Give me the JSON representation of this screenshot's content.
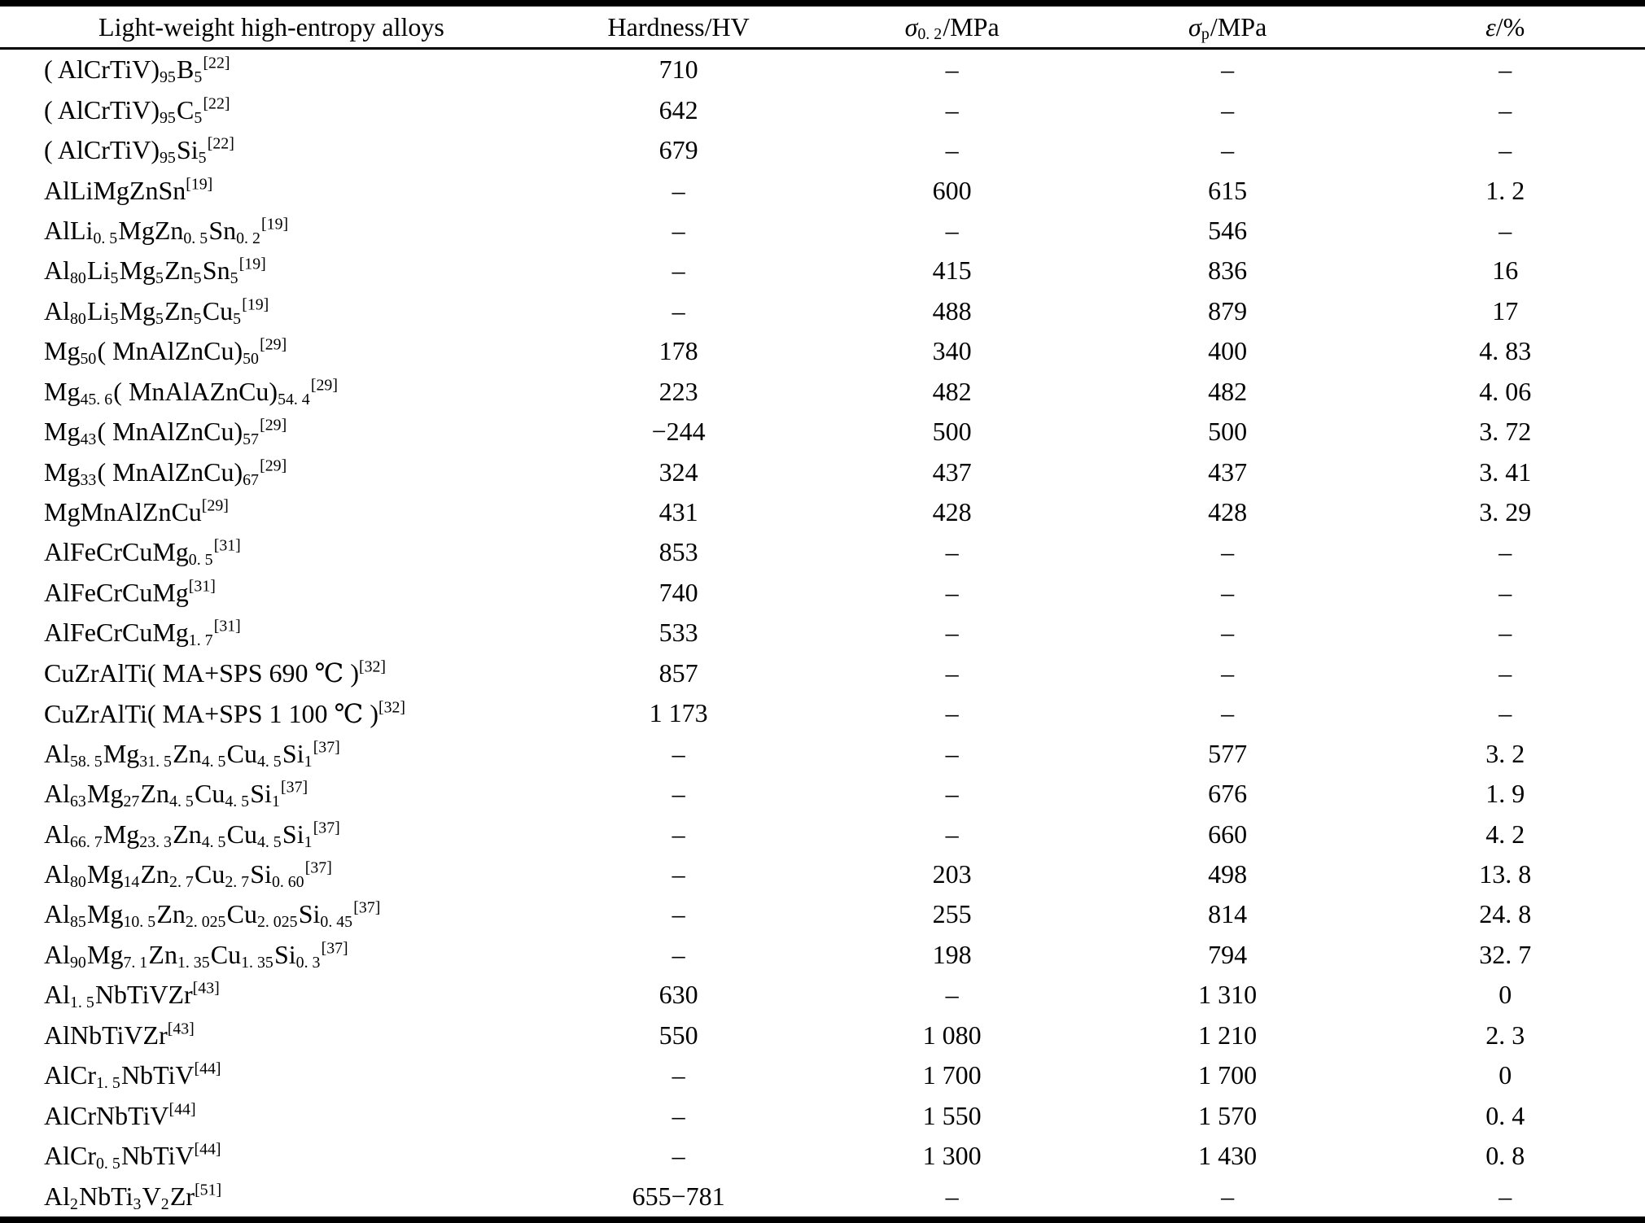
{
  "table": {
    "columns": [
      {
        "label": [
          {
            "t": "Light-weight high-entropy alloys"
          }
        ]
      },
      {
        "label": [
          {
            "t": "Hardness/HV"
          }
        ]
      },
      {
        "label": [
          {
            "i": "σ"
          },
          {
            "sub": "0. 2"
          },
          {
            "t": "/MPa"
          }
        ]
      },
      {
        "label": [
          {
            "i": "σ"
          },
          {
            "sub": "p"
          },
          {
            "t": "/MPa"
          }
        ]
      },
      {
        "label": [
          {
            "i": "ε"
          },
          {
            "t": "/%"
          }
        ]
      }
    ],
    "rows": [
      {
        "name": [
          {
            "t": "( AlCrTiV)"
          },
          {
            "sub": "95"
          },
          {
            "t": "B"
          },
          {
            "sub": "5"
          },
          {
            "sup": "[22]"
          }
        ],
        "values": [
          "710",
          "–",
          "–",
          "–"
        ]
      },
      {
        "name": [
          {
            "t": "( AlCrTiV)"
          },
          {
            "sub": "95"
          },
          {
            "t": "C"
          },
          {
            "sub": "5"
          },
          {
            "sup": "[22]"
          }
        ],
        "values": [
          "642",
          "–",
          "–",
          "–"
        ]
      },
      {
        "name": [
          {
            "t": "( AlCrTiV)"
          },
          {
            "sub": "95"
          },
          {
            "t": "Si"
          },
          {
            "sub": "5"
          },
          {
            "sup": "[22]"
          }
        ],
        "values": [
          "679",
          "–",
          "–",
          "–"
        ]
      },
      {
        "name": [
          {
            "t": "AlLiMgZnSn"
          },
          {
            "sup": "[19]"
          }
        ],
        "values": [
          "–",
          "600",
          "615",
          "1. 2"
        ]
      },
      {
        "name": [
          {
            "t": "AlLi"
          },
          {
            "sub": "0. 5"
          },
          {
            "t": "MgZn"
          },
          {
            "sub": "0. 5"
          },
          {
            "t": "Sn"
          },
          {
            "sub": "0. 2"
          },
          {
            "sup": "[19]"
          }
        ],
        "values": [
          "–",
          "–",
          "546",
          "–"
        ]
      },
      {
        "name": [
          {
            "t": "Al"
          },
          {
            "sub": "80"
          },
          {
            "t": "Li"
          },
          {
            "sub": "5"
          },
          {
            "t": "Mg"
          },
          {
            "sub": "5"
          },
          {
            "t": "Zn"
          },
          {
            "sub": "5"
          },
          {
            "t": "Sn"
          },
          {
            "sub": "5"
          },
          {
            "sup": "[19]"
          }
        ],
        "values": [
          "–",
          "415",
          "836",
          "16"
        ]
      },
      {
        "name": [
          {
            "t": "Al"
          },
          {
            "sub": "80"
          },
          {
            "t": "Li"
          },
          {
            "sub": "5"
          },
          {
            "t": "Mg"
          },
          {
            "sub": "5"
          },
          {
            "t": "Zn"
          },
          {
            "sub": "5"
          },
          {
            "t": "Cu"
          },
          {
            "sub": "5"
          },
          {
            "sup": "[19]"
          }
        ],
        "values": [
          "–",
          "488",
          "879",
          "17"
        ]
      },
      {
        "name": [
          {
            "t": "Mg"
          },
          {
            "sub": "50"
          },
          {
            "t": "( MnAlZnCu)"
          },
          {
            "sub": "50"
          },
          {
            "sup": "[29]"
          }
        ],
        "values": [
          "178",
          "340",
          "400",
          "4. 83"
        ]
      },
      {
        "name": [
          {
            "t": "Mg"
          },
          {
            "sub": "45. 6"
          },
          {
            "t": "( MnAlAZnCu)"
          },
          {
            "sub": "54. 4"
          },
          {
            "sup": "[29]"
          }
        ],
        "values": [
          "223",
          "482",
          "482",
          "4. 06"
        ]
      },
      {
        "name": [
          {
            "t": "Mg"
          },
          {
            "sub": "43"
          },
          {
            "t": "( MnAlZnCu)"
          },
          {
            "sub": "57"
          },
          {
            "sup": "[29]"
          }
        ],
        "values": [
          "−244",
          "500",
          "500",
          "3. 72"
        ]
      },
      {
        "name": [
          {
            "t": "Mg"
          },
          {
            "sub": "33"
          },
          {
            "t": "( MnAlZnCu)"
          },
          {
            "sub": "67"
          },
          {
            "sup": "[29]"
          }
        ],
        "values": [
          "324",
          "437",
          "437",
          "3. 41"
        ]
      },
      {
        "name": [
          {
            "t": "MgMnAlZnCu"
          },
          {
            "sup": "[29]"
          }
        ],
        "values": [
          "431",
          "428",
          "428",
          "3. 29"
        ]
      },
      {
        "name": [
          {
            "t": "AlFeCrCuMg"
          },
          {
            "sub": "0. 5"
          },
          {
            "sup": "[31]"
          }
        ],
        "values": [
          "853",
          "–",
          "–",
          "–"
        ]
      },
      {
        "name": [
          {
            "t": "AlFeCrCuMg"
          },
          {
            "sup": "[31]"
          }
        ],
        "values": [
          "740",
          "–",
          "–",
          "–"
        ]
      },
      {
        "name": [
          {
            "t": "AlFeCrCuMg"
          },
          {
            "sub": "1. 7"
          },
          {
            "sup": "[31]"
          }
        ],
        "values": [
          "533",
          "–",
          "–",
          "–"
        ]
      },
      {
        "name": [
          {
            "t": "CuZrAlTi( MA+SPS 690 ℃ )"
          },
          {
            "sup": "[32]"
          }
        ],
        "values": [
          "857",
          "–",
          "–",
          "–"
        ]
      },
      {
        "name": [
          {
            "t": "CuZrAlTi( MA+SPS 1 100 ℃ )"
          },
          {
            "sup": "[32]"
          }
        ],
        "values": [
          "1 173",
          "–",
          "–",
          "–"
        ]
      },
      {
        "name": [
          {
            "t": "Al"
          },
          {
            "sub": "58. 5"
          },
          {
            "t": "Mg"
          },
          {
            "sub": "31. 5"
          },
          {
            "t": "Zn"
          },
          {
            "sub": "4. 5"
          },
          {
            "t": "Cu"
          },
          {
            "sub": "4. 5"
          },
          {
            "t": "Si"
          },
          {
            "sub": "1"
          },
          {
            "sup": "[37]"
          }
        ],
        "values": [
          "–",
          "–",
          "577",
          "3. 2"
        ]
      },
      {
        "name": [
          {
            "t": "Al"
          },
          {
            "sub": "63"
          },
          {
            "t": "Mg"
          },
          {
            "sub": "27"
          },
          {
            "t": "Zn"
          },
          {
            "sub": "4. 5"
          },
          {
            "t": "Cu"
          },
          {
            "sub": "4. 5"
          },
          {
            "t": "Si"
          },
          {
            "sub": "1"
          },
          {
            "sup": "[37]"
          }
        ],
        "values": [
          "–",
          "–",
          "676",
          "1. 9"
        ]
      },
      {
        "name": [
          {
            "t": "Al"
          },
          {
            "sub": "66. 7"
          },
          {
            "t": "Mg"
          },
          {
            "sub": "23. 3"
          },
          {
            "t": "Zn"
          },
          {
            "sub": "4. 5"
          },
          {
            "t": "Cu"
          },
          {
            "sub": "4. 5"
          },
          {
            "t": "Si"
          },
          {
            "sub": "1"
          },
          {
            "sup": "[37]"
          }
        ],
        "values": [
          "–",
          "–",
          "660",
          "4. 2"
        ]
      },
      {
        "name": [
          {
            "t": "Al"
          },
          {
            "sub": "80"
          },
          {
            "t": "Mg"
          },
          {
            "sub": "14"
          },
          {
            "t": "Zn"
          },
          {
            "sub": "2. 7"
          },
          {
            "t": "Cu"
          },
          {
            "sub": "2. 7"
          },
          {
            "t": "Si"
          },
          {
            "sub": "0. 60"
          },
          {
            "sup": "[37]"
          }
        ],
        "values": [
          "–",
          "203",
          "498",
          "13. 8"
        ]
      },
      {
        "name": [
          {
            "t": "Al"
          },
          {
            "sub": "85"
          },
          {
            "t": "Mg"
          },
          {
            "sub": "10. 5"
          },
          {
            "t": "Zn"
          },
          {
            "sub": "2. 025"
          },
          {
            "t": "Cu"
          },
          {
            "sub": "2. 025"
          },
          {
            "t": "Si"
          },
          {
            "sub": "0. 45"
          },
          {
            "sup": "[37]"
          }
        ],
        "values": [
          "–",
          "255",
          "814",
          "24. 8"
        ]
      },
      {
        "name": [
          {
            "t": "Al"
          },
          {
            "sub": "90"
          },
          {
            "t": "Mg"
          },
          {
            "sub": "7. 1"
          },
          {
            "t": "Zn"
          },
          {
            "sub": "1. 35"
          },
          {
            "t": "Cu"
          },
          {
            "sub": "1. 35"
          },
          {
            "t": "Si"
          },
          {
            "sub": "0. 3"
          },
          {
            "sup": "[37]"
          }
        ],
        "values": [
          "–",
          "198",
          "794",
          "32. 7"
        ]
      },
      {
        "name": [
          {
            "t": "Al"
          },
          {
            "sub": "1. 5"
          },
          {
            "t": "NbTiVZr"
          },
          {
            "sup": "[43]"
          }
        ],
        "values": [
          "630",
          "–",
          "1 310",
          "0"
        ]
      },
      {
        "name": [
          {
            "t": "AlNbTiVZr"
          },
          {
            "sup": "[43]"
          }
        ],
        "values": [
          "550",
          "1 080",
          "1 210",
          "2. 3"
        ]
      },
      {
        "name": [
          {
            "t": "AlCr"
          },
          {
            "sub": "1. 5"
          },
          {
            "t": "NbTiV"
          },
          {
            "sup": "[44]"
          }
        ],
        "values": [
          "–",
          "1 700",
          "1 700",
          "0"
        ]
      },
      {
        "name": [
          {
            "t": "AlCrNbTiV"
          },
          {
            "sup": "[44]"
          }
        ],
        "values": [
          "–",
          "1 550",
          "1 570",
          "0. 4"
        ]
      },
      {
        "name": [
          {
            "t": "AlCr"
          },
          {
            "sub": "0. 5"
          },
          {
            "t": "NbTiV"
          },
          {
            "sup": "[44]"
          }
        ],
        "values": [
          "–",
          "1 300",
          "1 430",
          "0. 8"
        ]
      },
      {
        "name": [
          {
            "t": "Al"
          },
          {
            "sub": "2"
          },
          {
            "t": "NbTi"
          },
          {
            "sub": "3"
          },
          {
            "t": "V"
          },
          {
            "sub": "2"
          },
          {
            "t": "Zr"
          },
          {
            "sup": "[51]"
          }
        ],
        "values": [
          "655−781",
          "–",
          "–",
          "–"
        ]
      }
    ]
  }
}
